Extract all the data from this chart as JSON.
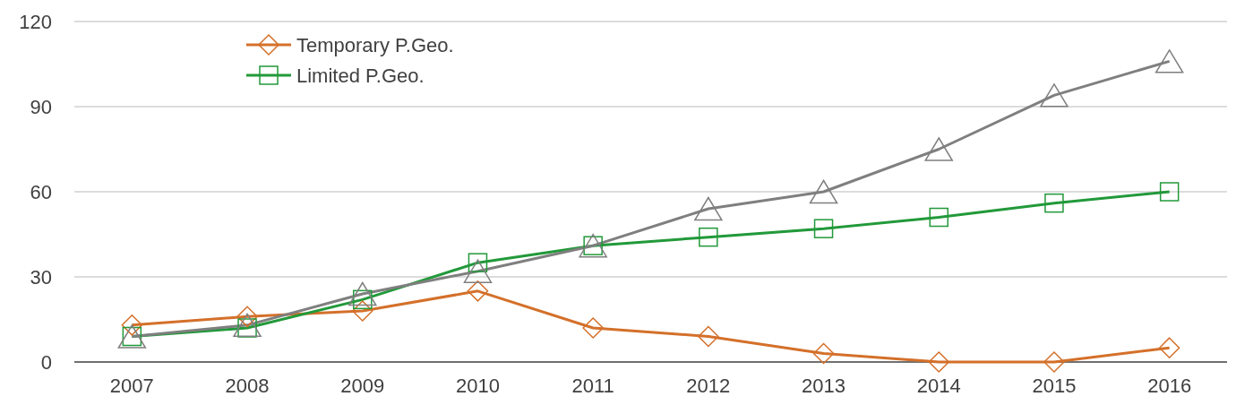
{
  "chart_data": {
    "type": "line",
    "categories": [
      "2007",
      "2008",
      "2009",
      "2010",
      "2011",
      "2012",
      "2013",
      "2014",
      "2015",
      "2016"
    ],
    "series": [
      {
        "name": "Temporary P.Geo.",
        "color": "#d4702a",
        "marker": "diamond",
        "values": [
          13,
          16,
          18,
          25,
          12,
          9,
          3,
          0,
          0,
          5
        ]
      },
      {
        "name": "Limited P.Geo.",
        "color": "#22993a",
        "marker": "square",
        "values": [
          9,
          12,
          22,
          35,
          41,
          44,
          47,
          51,
          56,
          60
        ]
      },
      {
        "color": "#7f7f7f",
        "marker": "triangle",
        "values": [
          9,
          13,
          24,
          32,
          41,
          54,
          60,
          75,
          94,
          106
        ]
      }
    ],
    "ylim": [
      0,
      120
    ],
    "yticks": [
      0,
      30,
      60,
      90,
      120
    ],
    "grid": "y",
    "legend": "top left",
    "line_style": "solid"
  }
}
